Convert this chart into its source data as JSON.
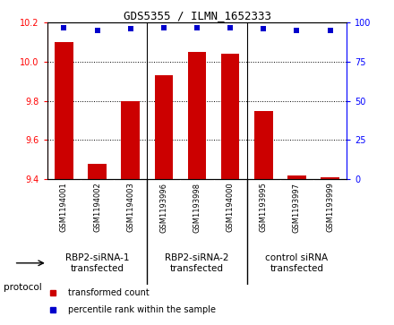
{
  "title": "GDS5355 / ILMN_1652333",
  "samples": [
    "GSM1194001",
    "GSM1194002",
    "GSM1194003",
    "GSM1193996",
    "GSM1193998",
    "GSM1194000",
    "GSM1193995",
    "GSM1193997",
    "GSM1193999"
  ],
  "transformed_counts": [
    10.1,
    9.48,
    9.8,
    9.93,
    10.05,
    10.04,
    9.75,
    9.42,
    9.41
  ],
  "percentile_ranks": [
    97,
    95,
    96,
    97,
    97,
    97,
    96,
    95,
    95
  ],
  "ylim_left": [
    9.4,
    10.2
  ],
  "ylim_right": [
    0,
    100
  ],
  "yticks_left": [
    9.4,
    9.6,
    9.8,
    10.0,
    10.2
  ],
  "yticks_right": [
    0,
    25,
    50,
    75,
    100
  ],
  "group_labels": [
    "RBP2-siRNA-1\ntransfected",
    "RBP2-siRNA-2\ntransfected",
    "control siRNA\ntransfected"
  ],
  "group_starts": [
    0,
    3,
    6
  ],
  "group_ends": [
    3,
    6,
    9
  ],
  "group_color": "#66cc66",
  "sample_box_color": "#cccccc",
  "bar_color": "#cc0000",
  "dot_color": "#0000cc",
  "background_color": "#ffffff",
  "bar_bottom": 9.4,
  "bar_width": 0.55,
  "legend_bar_label": "transformed count",
  "legend_dot_label": "percentile rank within the sample",
  "protocol_label": "protocol"
}
